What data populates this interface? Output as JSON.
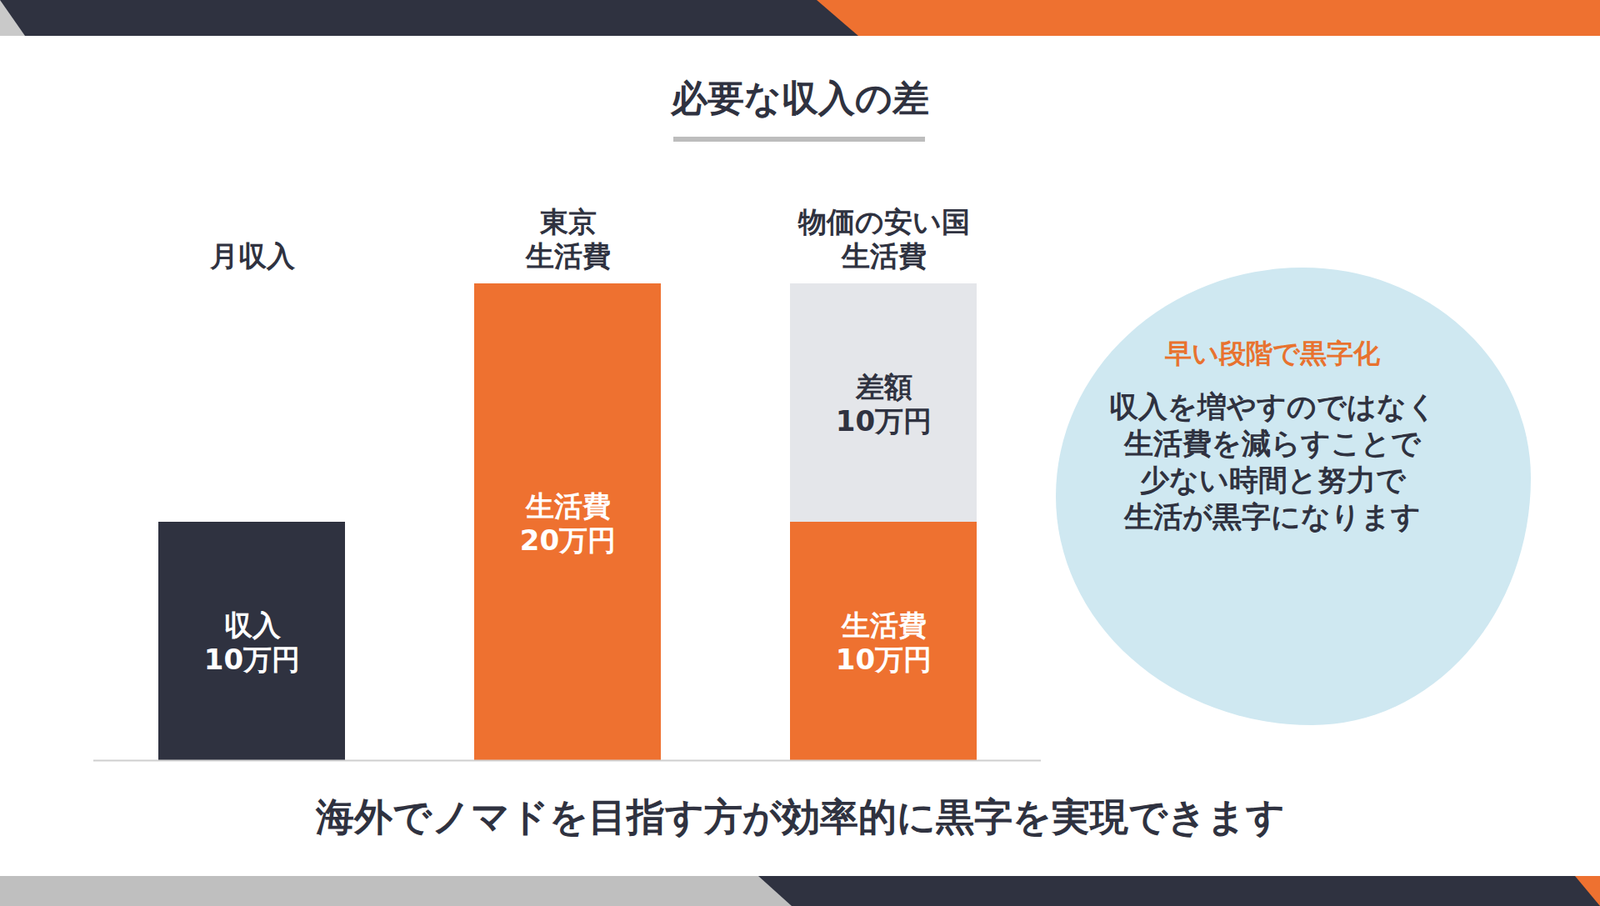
{
  "chart_data": {
    "type": "bar",
    "title": "必要な収入の差",
    "categories": [
      "月収入",
      "東京\n生活費",
      "物価の安い国\n生活費"
    ],
    "series": [
      {
        "name": "収入",
        "color": "#2f3240",
        "values": [
          10,
          null,
          null
        ],
        "value_labels": [
          "10万円",
          null,
          null
        ]
      },
      {
        "name": "生活費",
        "color": "#ee7130",
        "values": [
          null,
          20,
          10
        ],
        "value_labels": [
          null,
          "20万円",
          "10万円"
        ]
      },
      {
        "name": "差額",
        "color": "#e4e6ea",
        "values": [
          null,
          null,
          10
        ],
        "value_labels": [
          null,
          null,
          "10万円"
        ]
      }
    ],
    "ylim": [
      0,
      20
    ],
    "stacked": true,
    "data_labels": true,
    "tick_labels": "x",
    "callout": {
      "title": "早い段階で黒字化",
      "text": [
        "収入を増やすのではなく",
        "生活費を減らすことで",
        "少ない時間と努力で",
        "生活が黒字になります"
      ]
    },
    "caption": "海外でノマドを目指す方が効率的に黒字を実現できます"
  }
}
